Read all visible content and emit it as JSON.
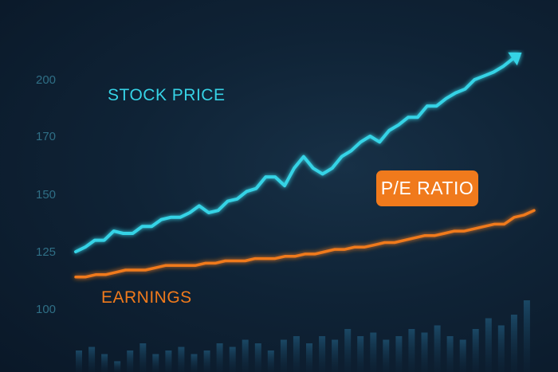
{
  "chart_data": {
    "type": "line",
    "yticks": [
      200,
      170,
      150,
      125,
      100
    ],
    "series": [
      {
        "name": "STOCK PRICE",
        "color": "#36d3e6",
        "values": [
          125,
          127,
          130,
          130,
          134,
          133,
          133,
          136,
          136,
          139,
          140,
          140,
          142,
          145,
          142,
          143,
          147,
          148,
          151,
          152,
          156,
          156,
          153,
          159,
          163,
          159,
          157,
          159,
          163,
          165,
          168,
          170,
          168,
          173,
          176,
          180,
          180,
          186,
          186,
          190,
          193,
          195,
          200,
          202,
          204,
          207,
          211
        ]
      },
      {
        "name": "EARNINGS",
        "color": "#f07a1c",
        "values": [
          114,
          114,
          115,
          115,
          116,
          117,
          117,
          117,
          118,
          119,
          119,
          119,
          119,
          120,
          120,
          121,
          121,
          121,
          122,
          122,
          122,
          123,
          123,
          124,
          124,
          125,
          126,
          126,
          127,
          127,
          128,
          129,
          129,
          130,
          131,
          132,
          132,
          133,
          134,
          134,
          135,
          136,
          137,
          137,
          140,
          141,
          143
        ]
      }
    ],
    "volume": [
      0.6,
      0.7,
      0.5,
      0.3,
      0.6,
      0.8,
      0.5,
      0.6,
      0.7,
      0.5,
      0.6,
      0.8,
      0.7,
      0.9,
      0.8,
      0.6,
      0.9,
      1.0,
      0.8,
      1.0,
      0.9,
      1.2,
      1.0,
      1.1,
      0.9,
      1.0,
      1.2,
      1.1,
      1.3,
      1.0,
      0.9,
      1.2,
      1.5,
      1.3,
      1.6,
      2.0
    ],
    "grid": false,
    "legend": "none"
  },
  "labels": {
    "stock": "STOCK PRICE",
    "earnings": "EARNINGS",
    "pe_ratio": "P/E RATIO"
  }
}
